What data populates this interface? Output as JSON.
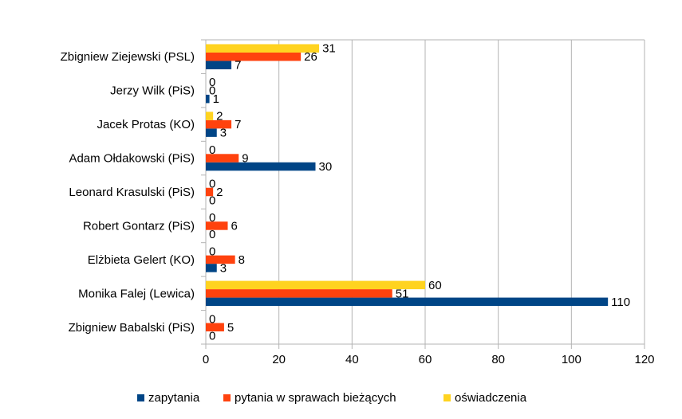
{
  "chart_data": {
    "type": "bar",
    "orientation": "horizontal",
    "categories": [
      "Zbigniew Ziejewski (PSL)",
      "Jerzy Wilk (PiS)",
      "Jacek Protas (KO)",
      "Adam Ołdakowski (PiS)",
      "Leonard Krasulski (PiS)",
      "Robert Gontarz (PiS)",
      "Elżbieta Gelert (KO)",
      "Monika Falej (Lewica)",
      "Zbigniew Babalski (PiS)"
    ],
    "series": [
      {
        "name": "zapytania",
        "color": "#004586",
        "values": [
          7,
          1,
          3,
          30,
          0,
          0,
          3,
          110,
          0
        ]
      },
      {
        "name": "pytania w sprawach bieżących",
        "color": "#ff420e",
        "values": [
          26,
          0,
          7,
          9,
          2,
          6,
          8,
          51,
          5
        ]
      },
      {
        "name": "oświadczenia",
        "color": "#ffd320",
        "values": [
          31,
          0,
          2,
          0,
          0,
          0,
          0,
          60,
          0
        ]
      }
    ],
    "xlim": [
      0,
      120
    ],
    "xticks": [
      0,
      20,
      40,
      60,
      80,
      100,
      120
    ],
    "grid": true,
    "legend": "bottom",
    "data_labels": true
  }
}
